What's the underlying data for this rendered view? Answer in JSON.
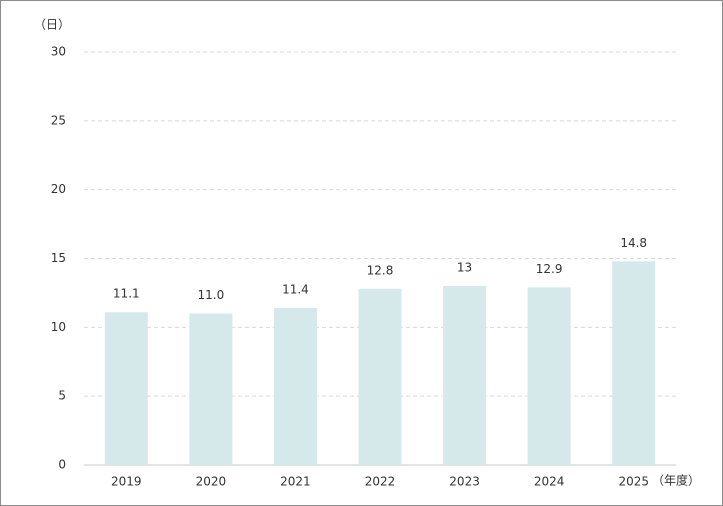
{
  "chart_data": {
    "type": "bar",
    "y_axis_label": "（日）",
    "x_axis_label": "（年度）",
    "categories": [
      "2019",
      "2020",
      "2021",
      "2022",
      "2023",
      "2024",
      "2025"
    ],
    "values": [
      11.1,
      11.0,
      11.4,
      12.8,
      13,
      12.9,
      14.8
    ],
    "value_labels": [
      "11.1",
      "11.0",
      "11.4",
      "12.8",
      "13",
      "12.9",
      "14.8"
    ],
    "color": "#d5e8ea",
    "ylim": [
      0,
      30
    ],
    "yticks": [
      0,
      5,
      10,
      15,
      20,
      25,
      30
    ],
    "grid": true
  }
}
